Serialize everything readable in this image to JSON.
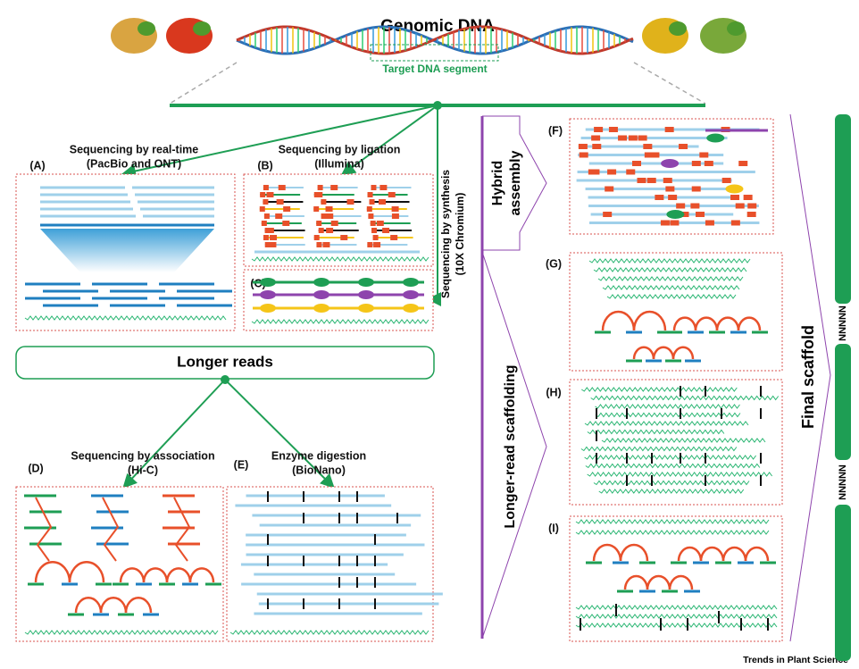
{
  "header": {
    "title": "Genomic DNA",
    "target": "Target DNA segment"
  },
  "panels": [
    {
      "label": "(A)",
      "title": [
        "Sequencing by real-time",
        "(PacBio and ONT)"
      ]
    },
    {
      "label": "(B)",
      "title": [
        "Sequencing by ligation",
        "(Illumina)"
      ]
    },
    {
      "label": "(C)"
    },
    {
      "label": "(D)",
      "title": [
        "Sequencing by association",
        "(Hi-C)"
      ]
    },
    {
      "label": "(E)",
      "title": [
        "Enzyme digestion",
        "(BioNano)"
      ]
    },
    {
      "label": "(F)"
    },
    {
      "label": "(G)"
    },
    {
      "label": "(H)"
    },
    {
      "label": "(I)"
    }
  ],
  "side": {
    "synthesis": [
      "Sequencing by synthesis",
      "(10X Chromium)"
    ],
    "hybrid": [
      "Hybrid",
      "assembly"
    ],
    "scaffolding": "Longer-read scaffolding",
    "final": "Final scaffold",
    "gaps": [
      "NNNNN",
      "NNNNN"
    ]
  },
  "longer_reads": "Longer reads",
  "footer": "Trends in Plant Science"
}
